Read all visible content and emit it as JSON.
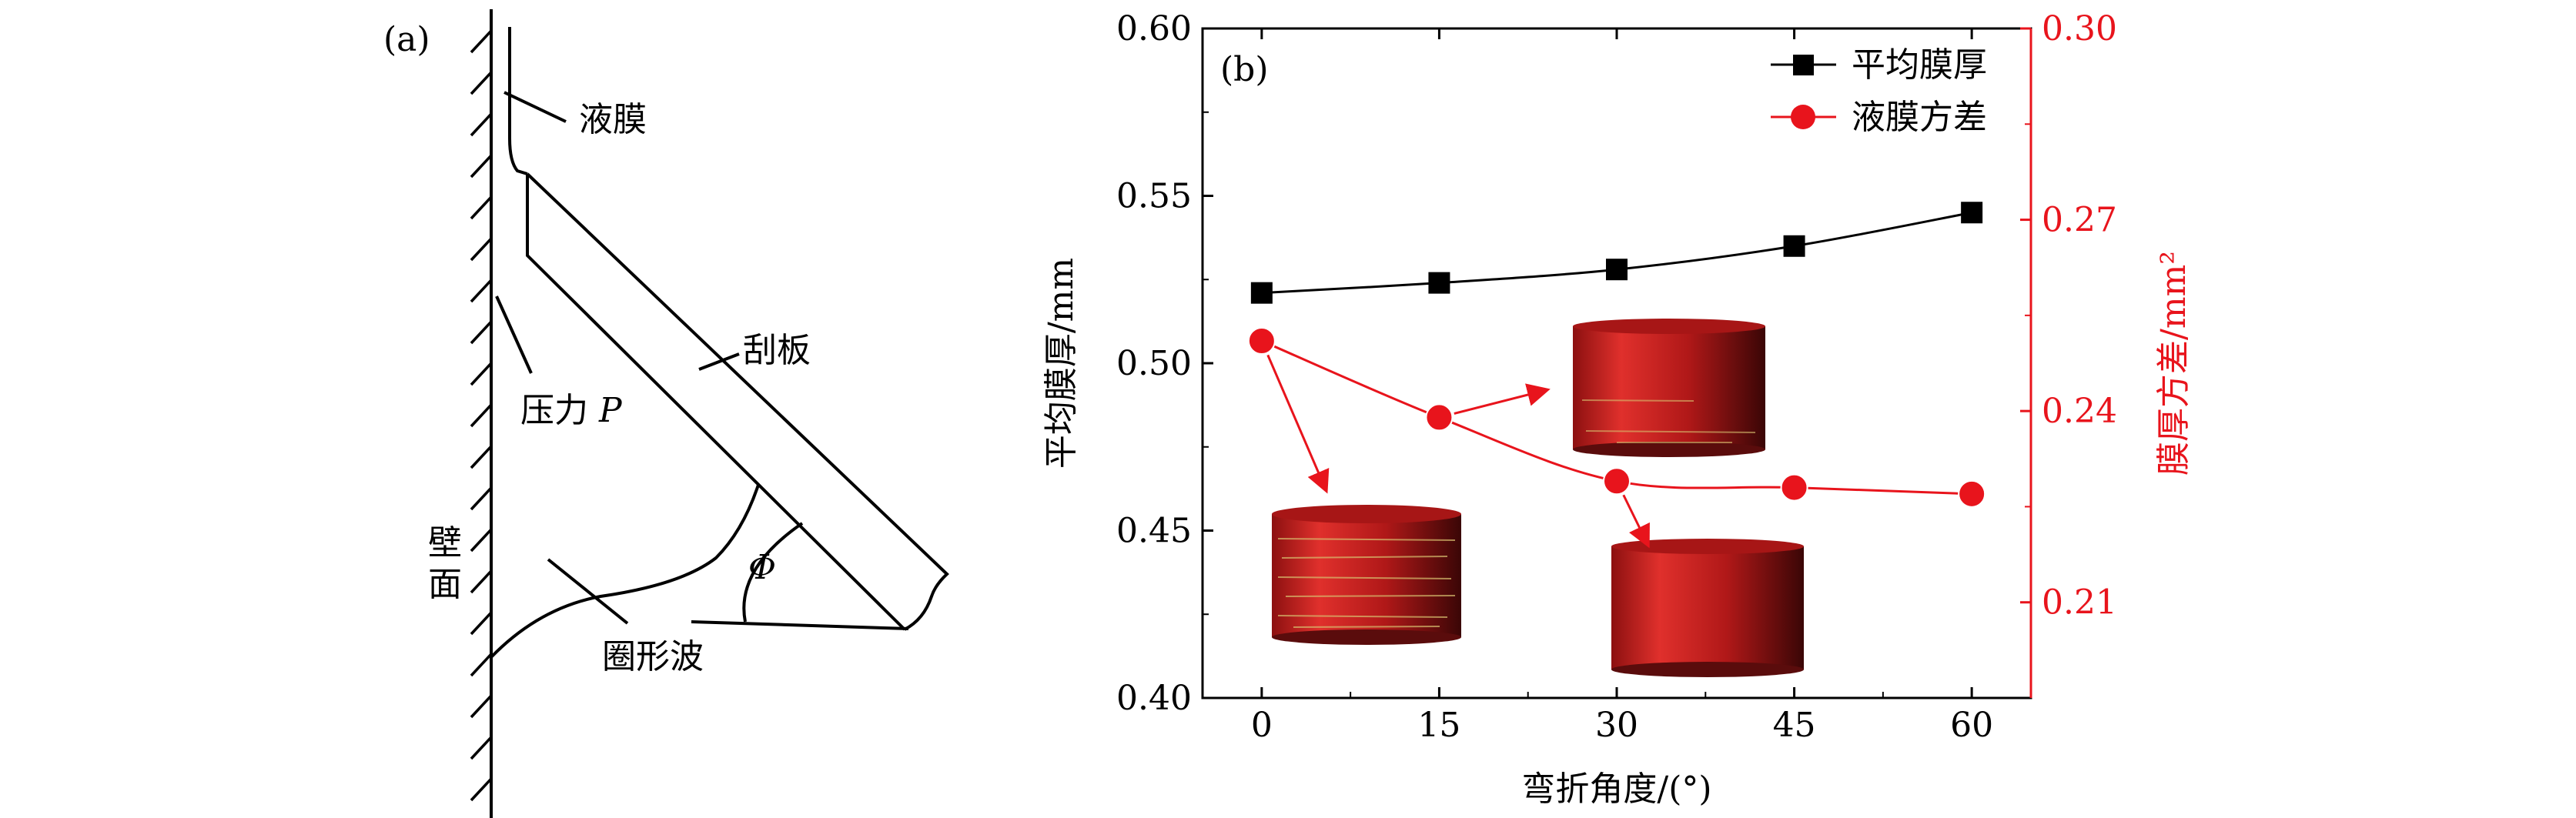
{
  "panel_a": {
    "label": "(a)",
    "callouts": {
      "film": "液膜",
      "scraper": "刮板",
      "pressure": "压力 ",
      "pressure_symbol": "P",
      "wall_1": "壁",
      "wall_2": "面",
      "ring_wave": "圈形波",
      "angle_symbol": "Φ"
    }
  },
  "chart_data": {
    "type": "line",
    "panel_label": "(b)",
    "x": [
      0,
      15,
      30,
      45,
      60
    ],
    "xticks": [
      "0",
      "15",
      "30",
      "45",
      "60"
    ],
    "xlabel": "弯折角度/(°)",
    "xlim": [
      -5,
      65
    ],
    "ylabel": "平均膜厚/mm",
    "ylim": [
      0.4,
      0.6
    ],
    "yticks": [
      "0.40",
      "0.45",
      "0.50",
      "0.55",
      "0.60"
    ],
    "y2label": "膜厚方差/mm²",
    "y2lim": [
      0.195,
      0.3
    ],
    "y2ticks": [
      "0.21",
      "0.24",
      "0.27",
      "0.30"
    ],
    "grid": false,
    "legend_position": "top-right",
    "series": [
      {
        "name": "平均膜厚",
        "axis": "left",
        "color": "#000000",
        "marker": "square",
        "values": [
          0.521,
          0.524,
          0.528,
          0.535,
          0.545
        ]
      },
      {
        "name": "液膜方差",
        "axis": "right",
        "color": "#e8141c",
        "marker": "circle",
        "values": [
          0.251,
          0.239,
          0.229,
          0.228,
          0.227
        ]
      }
    ]
  },
  "colors": {
    "right_axis": "#e8141c",
    "cylinder": "#b81d1d"
  }
}
